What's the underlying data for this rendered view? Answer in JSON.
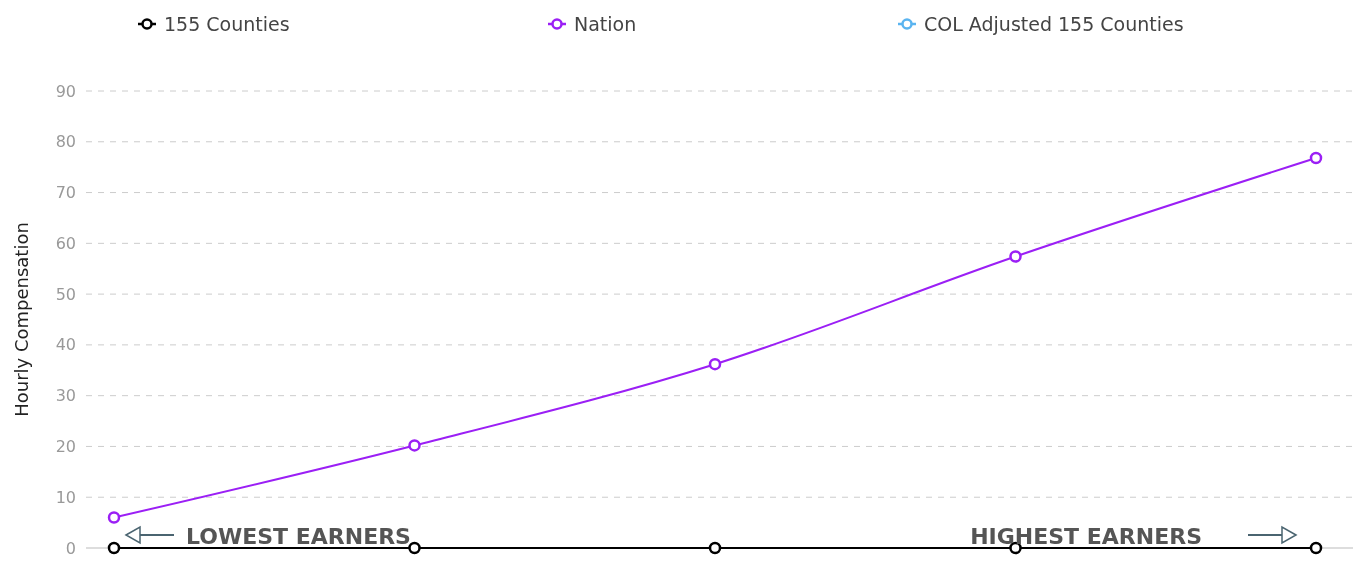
{
  "chart_data": {
    "type": "line",
    "ylabel": "Hourly Compensation",
    "categories": [
      null,
      null,
      null,
      null,
      null
    ],
    "series": [
      {
        "name": "155 Counties",
        "color": "#000000",
        "values": [
          0,
          0,
          0,
          0,
          0
        ]
      },
      {
        "name": "Nation",
        "color": "#9b1ff5",
        "values": [
          6,
          20.2,
          36.2,
          57.4,
          76.8
        ]
      },
      {
        "name": "COL Adjusted 155 Counties",
        "color": "#5ab4f0",
        "values": [
          null,
          null,
          null,
          null,
          null
        ]
      }
    ],
    "ylim": [
      0,
      90
    ],
    "yticks": [
      0,
      10,
      20,
      30,
      40,
      50,
      60,
      70,
      80,
      90
    ],
    "grid": "y",
    "legend": "top",
    "marker": "circle",
    "line_style": "solid",
    "annotations": [
      "LOWEST EARNERS",
      "HIGHEST EARNERS"
    ]
  }
}
